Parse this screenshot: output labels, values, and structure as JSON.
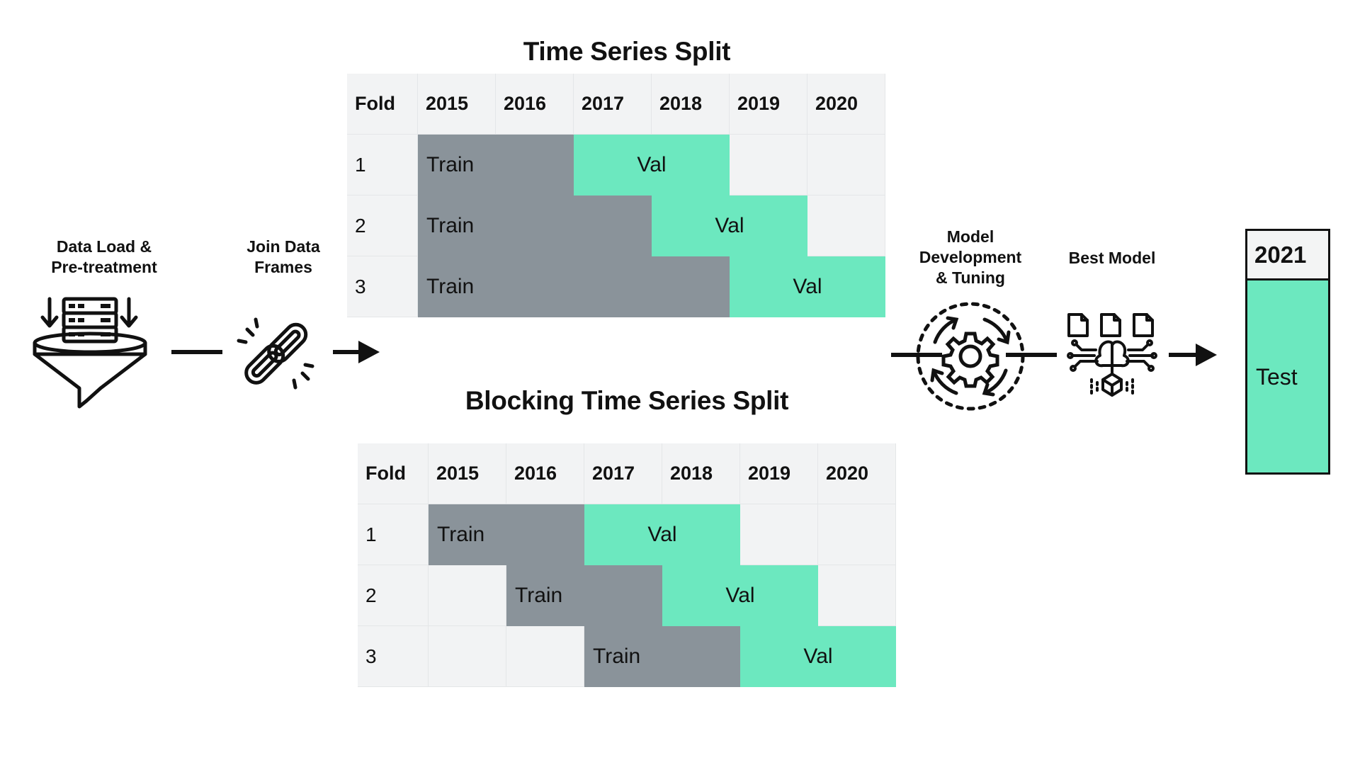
{
  "colors": {
    "train": "#8a939a",
    "val": "#6ce8bf",
    "grid_bg": "#f2f3f4",
    "line": "#111111"
  },
  "steps": {
    "data_load": {
      "line1": "Data Load &",
      "line2": "Pre-treatment",
      "icon": "funnel-database-icon"
    },
    "join": {
      "line1": "Join Data",
      "line2": "Frames",
      "icon": "chain-link-icon"
    },
    "model_dev": {
      "line1": "Model",
      "line2": "Development",
      "line3": "& Tuning",
      "icon": "gear-cycle-icon"
    },
    "best_model": {
      "line1": "Best Model",
      "icon": "ai-model-network-icon"
    }
  },
  "time_series_split": {
    "title": "Time Series Split",
    "header": [
      "Fold",
      "2015",
      "2016",
      "2017",
      "2018",
      "2019",
      "2020"
    ],
    "rows": [
      {
        "fold": "1",
        "train_label": "Train",
        "val_label": "Val",
        "train_start": 0,
        "train_end": 2,
        "val_start": 2,
        "val_end": 4
      },
      {
        "fold": "2",
        "train_label": "Train",
        "val_label": "Val",
        "train_start": 0,
        "train_end": 3,
        "val_start": 3,
        "val_end": 5
      },
      {
        "fold": "3",
        "train_label": "Train",
        "val_label": "Val",
        "train_start": 0,
        "train_end": 4,
        "val_start": 4,
        "val_end": 6
      }
    ]
  },
  "blocking_time_series_split": {
    "title": "Blocking Time Series Split",
    "header": [
      "Fold",
      "2015",
      "2016",
      "2017",
      "2018",
      "2019",
      "2020"
    ],
    "rows": [
      {
        "fold": "1",
        "train_label": "Train",
        "val_label": "Val",
        "train_start": 0,
        "train_end": 2,
        "val_start": 2,
        "val_end": 4
      },
      {
        "fold": "2",
        "train_label": "Train",
        "val_label": "Val",
        "train_start": 1,
        "train_end": 3,
        "val_start": 3,
        "val_end": 5
      },
      {
        "fold": "3",
        "train_label": "Train",
        "val_label": "Val",
        "train_start": 2,
        "train_end": 4,
        "val_start": 4,
        "val_end": 6
      }
    ]
  },
  "test": {
    "year": "2021",
    "label": "Test"
  }
}
